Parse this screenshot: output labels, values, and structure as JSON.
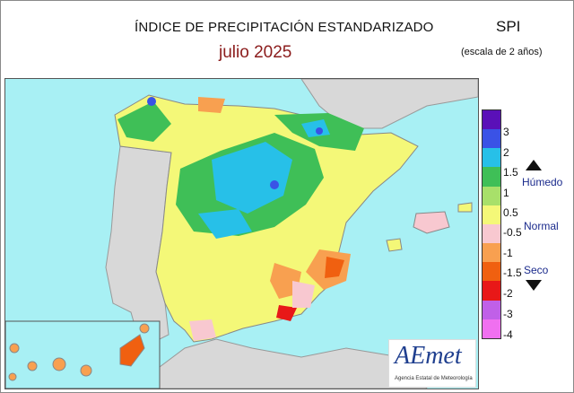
{
  "header": {
    "title": "ÍNDICE DE PRECIPITACIÓN ESTANDARIZADO",
    "period": "julio  2025",
    "index": "SPI",
    "scale_note": "(escala de 2 años)"
  },
  "legend": {
    "ticks": [
      "3",
      "2",
      "1.5",
      "1",
      "0.5",
      "-0.5",
      "-1",
      "-1.5",
      "-2",
      "-3",
      "-4"
    ],
    "colors": [
      "#5a10b8",
      "#3a52e6",
      "#27c0e8",
      "#3fbf57",
      "#a8e06a",
      "#f4f878",
      "#f8c8d0",
      "#f8a050",
      "#f06010",
      "#e81818",
      "#c060e8",
      "#f070f0"
    ],
    "label_wet": "Húmedo",
    "label_normal": "Normal",
    "label_dry": "Seco"
  },
  "map": {
    "colors": {
      "sea": "#a8f0f4",
      "land_outside": "#d8d8d8",
      "wet_dark": "#3a52e6",
      "wet_cyan": "#27c0e8",
      "wet_green": "#3fbf57",
      "light_green": "#a8e06a",
      "normal": "#f4f878",
      "pink": "#f8c8d0",
      "dry_orange": "#f8a050",
      "dry_deep": "#f06010",
      "dry_red": "#e81818",
      "border": "#ffffff"
    }
  },
  "logo": {
    "name": "AEmet",
    "subtitle": "Agencia Estatal de Meteorología"
  }
}
